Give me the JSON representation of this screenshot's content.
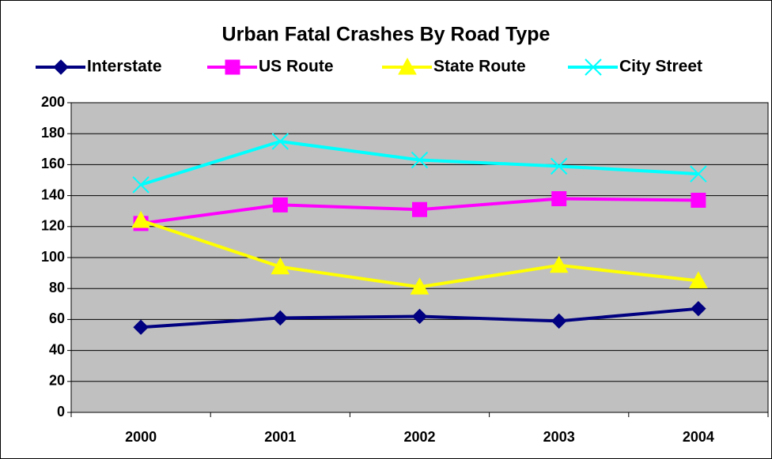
{
  "chart_data": {
    "type": "line",
    "title": "Urban Fatal Crashes By Road Type",
    "categories": [
      "2000",
      "2001",
      "2002",
      "2003",
      "2004"
    ],
    "series": [
      {
        "name": "Interstate",
        "color": "#000080",
        "marker": "diamond",
        "values": [
          55,
          61,
          62,
          59,
          67
        ]
      },
      {
        "name": "US Route",
        "color": "#ff00ff",
        "marker": "square",
        "values": [
          122,
          134,
          131,
          138,
          137
        ]
      },
      {
        "name": "State Route",
        "color": "#ffff00",
        "marker": "triangle",
        "values": [
          124,
          94,
          81,
          95,
          85
        ]
      },
      {
        "name": "City Street",
        "color": "#00ffff",
        "marker": "x",
        "values": [
          147,
          175,
          163,
          159,
          154
        ]
      }
    ],
    "ylim": [
      0,
      200
    ],
    "yticks": [
      0,
      20,
      40,
      60,
      80,
      100,
      120,
      140,
      160,
      180,
      200
    ],
    "grid": true,
    "legend": "top",
    "plot_background": "#c0c0c0"
  }
}
